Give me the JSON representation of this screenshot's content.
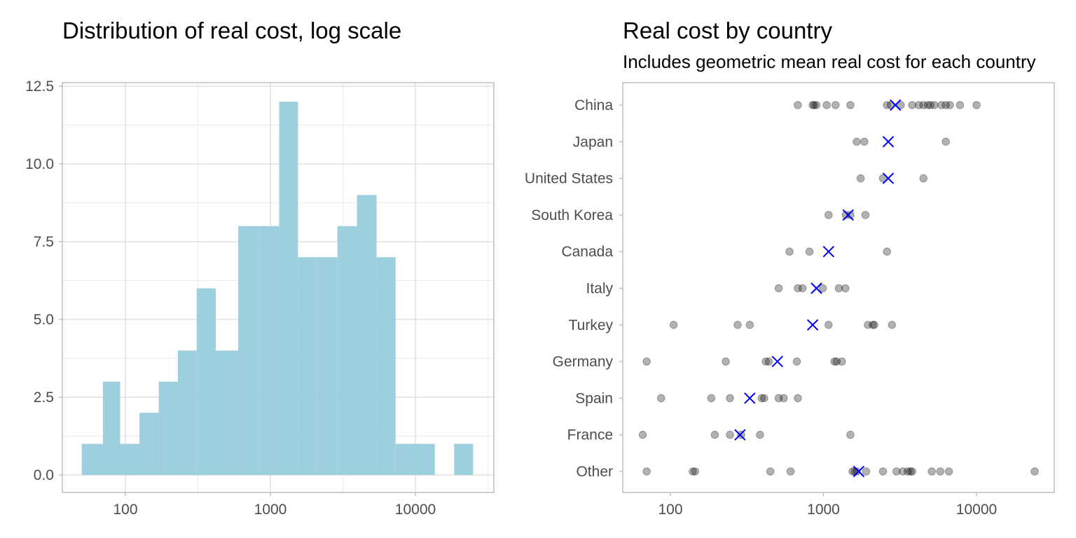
{
  "colors": {
    "bar_fill": "#9ECFDF",
    "grid_major": "#D9D9D9",
    "grid_minor": "#EBEBEB",
    "panel_border": "#B3B3B3",
    "point": "#000000",
    "mean_marker": "#0000FF"
  },
  "chart_data": [
    {
      "type": "bar",
      "title": "Distribution of real cost, log scale",
      "xlabel": "",
      "ylabel": "",
      "x_scale": "log10",
      "x_ticks": [
        "100",
        "1000",
        "10000"
      ],
      "y_ticks": [
        "0.0",
        "2.5",
        "5.0",
        "7.5",
        "10.0",
        "12.5"
      ],
      "ylim": [
        0,
        12.5
      ],
      "grid": true,
      "bins": [
        {
          "from": 50,
          "to": 70,
          "count": 1
        },
        {
          "from": 70,
          "to": 92,
          "count": 3
        },
        {
          "from": 92,
          "to": 125,
          "count": 1
        },
        {
          "from": 125,
          "to": 170,
          "count": 2
        },
        {
          "from": 170,
          "to": 230,
          "count": 3
        },
        {
          "from": 230,
          "to": 310,
          "count": 4
        },
        {
          "from": 310,
          "to": 420,
          "count": 6
        },
        {
          "from": 420,
          "to": 600,
          "count": 4
        },
        {
          "from": 600,
          "to": 830,
          "count": 8
        },
        {
          "from": 830,
          "to": 1150,
          "count": 8
        },
        {
          "from": 1150,
          "to": 1550,
          "count": 12
        },
        {
          "from": 1550,
          "to": 2100,
          "count": 7
        },
        {
          "from": 2100,
          "to": 2900,
          "count": 7
        },
        {
          "from": 2900,
          "to": 3950,
          "count": 8
        },
        {
          "from": 3950,
          "to": 5400,
          "count": 9
        },
        {
          "from": 5400,
          "to": 7300,
          "count": 7
        },
        {
          "from": 7300,
          "to": 10000,
          "count": 1
        },
        {
          "from": 10000,
          "to": 13600,
          "count": 1
        },
        {
          "from": 13600,
          "to": 18500,
          "count": 0
        },
        {
          "from": 18500,
          "to": 25000,
          "count": 1
        }
      ]
    },
    {
      "type": "scatter",
      "title": "Real cost by country",
      "subtitle": "Includes geometric mean real cost for each country",
      "xlabel": "",
      "ylabel": "",
      "x_scale": "log10",
      "x_ticks": [
        "100",
        "1000",
        "10000"
      ],
      "grid": false,
      "categories": [
        "China",
        "Japan",
        "United States",
        "South Korea",
        "Canada",
        "Italy",
        "Turkey",
        "Germany",
        "Spain",
        "France",
        "Other"
      ],
      "series": [
        {
          "values": [
            [
              680,
              850,
              870,
              900,
              1050,
              1200,
              1500,
              2600,
              2750,
              3200,
              3800,
              4200,
              4500,
              4800,
              5000,
              5300,
              5900,
              6300,
              6700,
              7800,
              10000
            ],
            [
              1650,
              1850,
              6300
            ],
            [
              1750,
              2450,
              4500
            ],
            [
              1080,
              1400,
              1500,
              1880
            ],
            [
              600,
              810,
              2600
            ],
            [
              510,
              680,
              730,
              990,
              1260,
              1390
            ],
            [
              105,
              275,
              330,
              1080,
              1950,
              2100,
              2150,
              2800
            ],
            [
              70,
              230,
              420,
              440,
              670,
              1180,
              1220,
              1320
            ],
            [
              87,
              185,
              245,
              395,
              410,
              510,
              550,
              680
            ],
            [
              66,
              195,
              245,
              290,
              385,
              1500
            ],
            [
              70,
              140,
              145,
              450,
              610,
              1550,
              1600,
              1650,
              1900,
              2450,
              3000,
              3300,
              3550,
              3700,
              3800,
              5100,
              5800,
              6600,
              24000
            ]
          ]
        },
        {
          "marker": "x",
          "values": [
            2950,
            2650,
            2650,
            1450,
            1080,
            900,
            850,
            500,
            330,
            285,
            1700
          ]
        }
      ]
    }
  ]
}
